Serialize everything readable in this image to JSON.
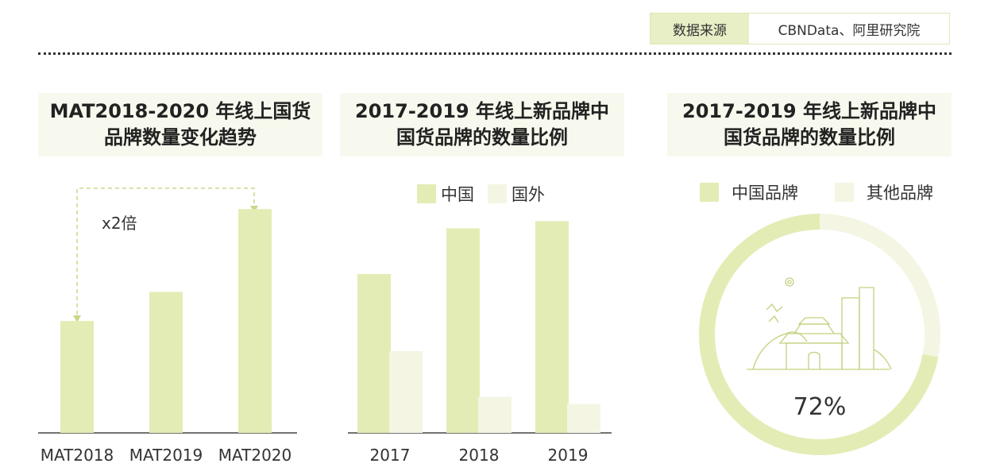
{
  "source": {
    "label": "数据来源",
    "value": "CBNData、阿里研究院"
  },
  "colors": {
    "primary": "#e4ecb5",
    "secondary": "#f4f6e3",
    "title_bg": "#f8f9ee",
    "ring_bg": "#f4f6e3"
  },
  "annotation": {
    "text": "x2倍"
  },
  "chart_data": [
    {
      "type": "bar",
      "title": "MAT2018-2020 年线上国货\n品牌数量变化趋势",
      "categories": [
        "MAT2018",
        "MAT2019",
        "MAT2020"
      ],
      "values": [
        1,
        1.26,
        2
      ],
      "ylim": [
        0,
        2.15
      ],
      "annotation": "x2倍"
    },
    {
      "type": "bar",
      "title": "2017-2019 年线上新品牌中\n国货品牌的数量比例",
      "categories": [
        "2017",
        "2018",
        "2019"
      ],
      "series": [
        {
          "name": "中国",
          "values": [
            66,
            85,
            88
          ]
        },
        {
          "name": "国外",
          "values": [
            34,
            15,
            12
          ]
        }
      ],
      "ylim": [
        0,
        100
      ],
      "legend": "top-center"
    },
    {
      "type": "pie",
      "title": "2017-2019 年线上新品牌中\n国货品牌的数量比例",
      "labels": [
        "中国品牌",
        "其他品牌"
      ],
      "values": [
        72,
        28
      ],
      "center_label": "72%",
      "legend": "top-center"
    }
  ]
}
